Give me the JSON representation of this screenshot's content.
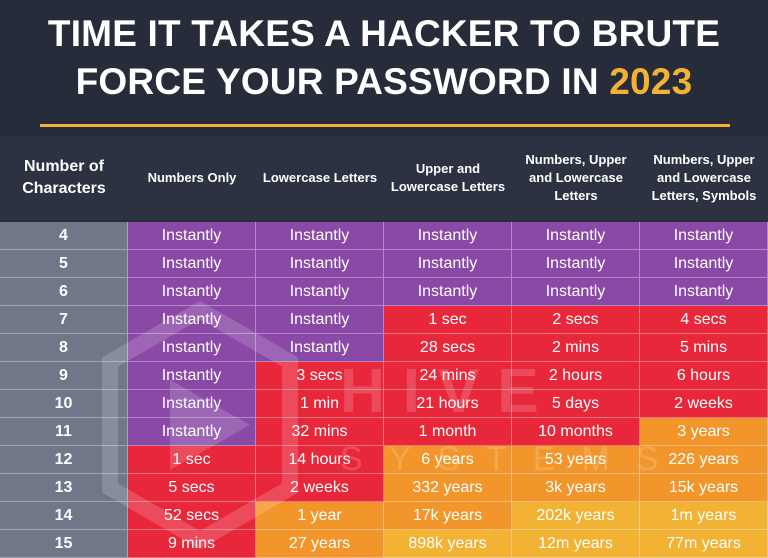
{
  "title": {
    "line1": "TIME IT TAKES A HACKER TO BRUTE",
    "line2_prefix": "FORCE YOUR PASSWORD IN ",
    "year": "2023"
  },
  "watermark": {
    "brand": "HIVE",
    "sub": "SYSTEMS"
  },
  "colors": {
    "purple": "#8a49a6",
    "red": "#e8283a",
    "orange": "#f2962b",
    "amber": "#f2b233",
    "rowhead": "#6f7788",
    "background": "#262c3a"
  },
  "table": {
    "headers": [
      "Number of Characters",
      "Numbers Only",
      "Lowercase Letters",
      "Upper and Lowercase Letters",
      "Numbers, Upper and Lowercase Letters",
      "Numbers, Upper and Lowercase Letters, Symbols"
    ],
    "rows": [
      {
        "chars": "4",
        "cells": [
          {
            "t": "Instantly",
            "c": "purple"
          },
          {
            "t": "Instantly",
            "c": "purple"
          },
          {
            "t": "Instantly",
            "c": "purple"
          },
          {
            "t": "Instantly",
            "c": "purple"
          },
          {
            "t": "Instantly",
            "c": "purple"
          }
        ]
      },
      {
        "chars": "5",
        "cells": [
          {
            "t": "Instantly",
            "c": "purple"
          },
          {
            "t": "Instantly",
            "c": "purple"
          },
          {
            "t": "Instantly",
            "c": "purple"
          },
          {
            "t": "Instantly",
            "c": "purple"
          },
          {
            "t": "Instantly",
            "c": "purple"
          }
        ]
      },
      {
        "chars": "6",
        "cells": [
          {
            "t": "Instantly",
            "c": "purple"
          },
          {
            "t": "Instantly",
            "c": "purple"
          },
          {
            "t": "Instantly",
            "c": "purple"
          },
          {
            "t": "Instantly",
            "c": "purple"
          },
          {
            "t": "Instantly",
            "c": "purple"
          }
        ]
      },
      {
        "chars": "7",
        "cells": [
          {
            "t": "Instantly",
            "c": "purple"
          },
          {
            "t": "Instantly",
            "c": "purple"
          },
          {
            "t": "1 sec",
            "c": "red"
          },
          {
            "t": "2 secs",
            "c": "red"
          },
          {
            "t": "4 secs",
            "c": "red"
          }
        ]
      },
      {
        "chars": "8",
        "cells": [
          {
            "t": "Instantly",
            "c": "purple"
          },
          {
            "t": "Instantly",
            "c": "purple"
          },
          {
            "t": "28 secs",
            "c": "red"
          },
          {
            "t": "2 mins",
            "c": "red"
          },
          {
            "t": "5 mins",
            "c": "red"
          }
        ]
      },
      {
        "chars": "9",
        "cells": [
          {
            "t": "Instantly",
            "c": "purple"
          },
          {
            "t": "3 secs",
            "c": "red"
          },
          {
            "t": "24 mins",
            "c": "red"
          },
          {
            "t": "2 hours",
            "c": "red"
          },
          {
            "t": "6 hours",
            "c": "red"
          }
        ]
      },
      {
        "chars": "10",
        "cells": [
          {
            "t": "Instantly",
            "c": "purple"
          },
          {
            "t": "1 min",
            "c": "red"
          },
          {
            "t": "21 hours",
            "c": "red"
          },
          {
            "t": "5 days",
            "c": "red"
          },
          {
            "t": "2 weeks",
            "c": "red"
          }
        ]
      },
      {
        "chars": "11",
        "cells": [
          {
            "t": "Instantly",
            "c": "purple"
          },
          {
            "t": "32 mins",
            "c": "red"
          },
          {
            "t": "1 month",
            "c": "red"
          },
          {
            "t": "10 months",
            "c": "red"
          },
          {
            "t": "3 years",
            "c": "orange"
          }
        ]
      },
      {
        "chars": "12",
        "cells": [
          {
            "t": "1 sec",
            "c": "red"
          },
          {
            "t": "14 hours",
            "c": "red"
          },
          {
            "t": "6 years",
            "c": "orange"
          },
          {
            "t": "53 years",
            "c": "orange"
          },
          {
            "t": "226 years",
            "c": "orange"
          }
        ]
      },
      {
        "chars": "13",
        "cells": [
          {
            "t": "5 secs",
            "c": "red"
          },
          {
            "t": "2 weeks",
            "c": "red"
          },
          {
            "t": "332 years",
            "c": "orange"
          },
          {
            "t": "3k years",
            "c": "orange"
          },
          {
            "t": "15k years",
            "c": "orange"
          }
        ]
      },
      {
        "chars": "14",
        "cells": [
          {
            "t": "52 secs",
            "c": "red"
          },
          {
            "t": "1 year",
            "c": "orange"
          },
          {
            "t": "17k years",
            "c": "orange"
          },
          {
            "t": "202k years",
            "c": "amber"
          },
          {
            "t": "1m years",
            "c": "amber"
          }
        ]
      },
      {
        "chars": "15",
        "cells": [
          {
            "t": "9 mins",
            "c": "red"
          },
          {
            "t": "27 years",
            "c": "orange"
          },
          {
            "t": "898k years",
            "c": "amber"
          },
          {
            "t": "12m years",
            "c": "amber"
          },
          {
            "t": "77m years",
            "c": "amber"
          }
        ]
      }
    ]
  }
}
